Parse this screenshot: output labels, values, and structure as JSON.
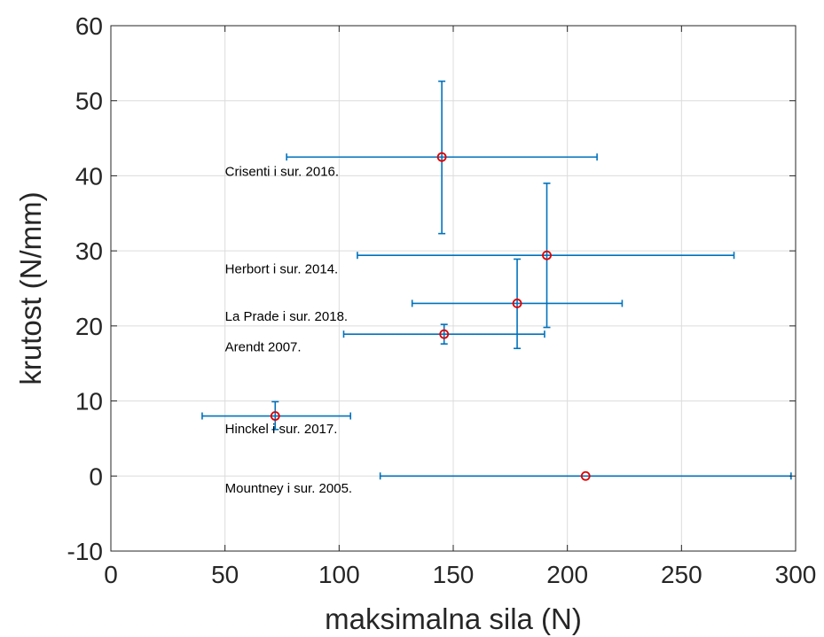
{
  "chart_data": {
    "type": "scatter",
    "title": "",
    "xlabel": "maksimalna sila (N)",
    "ylabel": "krutost (N/mm)",
    "xlim": [
      0,
      300
    ],
    "ylim": [
      -10,
      60
    ],
    "xticks": [
      0,
      50,
      100,
      150,
      200,
      250,
      300
    ],
    "yticks": [
      -10,
      0,
      10,
      20,
      30,
      40,
      50,
      60
    ],
    "xtick_labels": [
      "0",
      "50",
      "100",
      "150",
      "200",
      "250",
      "300"
    ],
    "ytick_labels": [
      "-10",
      "0",
      "10",
      "20",
      "30",
      "40",
      "50",
      "60"
    ],
    "grid": true,
    "marker": "circle",
    "marker_color": "#e00000",
    "errorbar_color": "#0072bd",
    "points": [
      {
        "label": "Crisenti i sur. 2016.",
        "x": 145,
        "y": 42.5,
        "xerr": [
          77,
          213
        ],
        "yerr": [
          32.3,
          52.6
        ],
        "label_x": 50,
        "label_y": 40
      },
      {
        "label": "Herbort i sur. 2014.",
        "x": 191,
        "y": 29.4,
        "xerr": [
          108,
          273
        ],
        "yerr": [
          19.8,
          39
        ],
        "label_x": 50,
        "label_y": 27
      },
      {
        "label": "La Prade i sur. 2018.",
        "x": 178,
        "y": 23,
        "xerr": [
          132,
          224
        ],
        "yerr": [
          17,
          28.9
        ],
        "label_x": 50,
        "label_y": 20.7
      },
      {
        "label": "Arendt 2007.",
        "x": 146,
        "y": 18.9,
        "xerr": [
          102,
          190
        ],
        "yerr": [
          17.6,
          20.2
        ],
        "label_x": 50,
        "label_y": 16.6
      },
      {
        "label": "Hinckel i sur. 2017.",
        "x": 72,
        "y": 8,
        "xerr": [
          40,
          105
        ],
        "yerr": [
          6.2,
          9.9
        ],
        "label_x": 50,
        "label_y": 5.7
      },
      {
        "label": "Mountney i sur. 2005.",
        "x": 208,
        "y": 0,
        "xerr": [
          118,
          298
        ],
        "yerr": [
          0,
          0
        ],
        "label_x": 50,
        "label_y": -2.2
      }
    ]
  }
}
